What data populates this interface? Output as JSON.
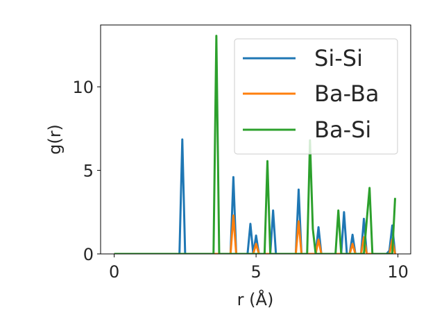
{
  "chart_data": {
    "type": "line",
    "xlabel": "r (Å)",
    "ylabel": "g(r)",
    "xlim": [
      -0.48,
      10.45
    ],
    "ylim": [
      0,
      13.7
    ],
    "xticks": [
      0,
      5,
      10
    ],
    "yticks": [
      0,
      5,
      10
    ],
    "xtick_labels": [
      "0",
      "5",
      "10"
    ],
    "ytick_labels": [
      "0",
      "5",
      "10"
    ],
    "grid": false,
    "legend_position": "top-right",
    "x": [
      0.0,
      0.1,
      0.2,
      0.3,
      0.4,
      0.5,
      0.6,
      0.7,
      0.8,
      0.9,
      1.0,
      1.1,
      1.2,
      1.3,
      1.4,
      1.5,
      1.6,
      1.7,
      1.8,
      1.9,
      2.0,
      2.1,
      2.2,
      2.3,
      2.4,
      2.5,
      2.6,
      2.7,
      2.8,
      2.9,
      3.0,
      3.1,
      3.2,
      3.3,
      3.4,
      3.5,
      3.6,
      3.7,
      3.8,
      3.9,
      4.0,
      4.1,
      4.2,
      4.3,
      4.4,
      4.5,
      4.6,
      4.7,
      4.8,
      4.9,
      5.0,
      5.1,
      5.2,
      5.3,
      5.4,
      5.5,
      5.6,
      5.7,
      5.8,
      5.9,
      6.0,
      6.1,
      6.2,
      6.3,
      6.4,
      6.5,
      6.6,
      6.7,
      6.8,
      6.9,
      7.0,
      7.1,
      7.2,
      7.3,
      7.4,
      7.5,
      7.6,
      7.7,
      7.8,
      7.9,
      8.0,
      8.1,
      8.2,
      8.3,
      8.4,
      8.5,
      8.6,
      8.7,
      8.8,
      8.9,
      9.0,
      9.1,
      9.2,
      9.3,
      9.4,
      9.5,
      9.6,
      9.7,
      9.8,
      9.9
    ],
    "series": [
      {
        "name": "Si-Si",
        "color": "#1f77b4",
        "values": [
          0,
          0,
          0,
          0,
          0,
          0,
          0,
          0,
          0,
          0,
          0,
          0,
          0,
          0,
          0,
          0,
          0,
          0,
          0,
          0,
          0,
          0,
          0,
          0,
          6.85,
          0,
          0,
          0,
          0,
          0,
          0,
          0,
          0,
          0,
          0,
          0,
          0,
          0,
          0,
          0,
          0,
          0,
          4.6,
          0,
          0,
          0,
          0,
          0,
          1.8,
          0,
          1.1,
          0,
          0,
          0,
          0,
          0,
          2.6,
          0,
          0,
          0,
          0,
          0,
          0,
          0,
          0,
          3.85,
          0,
          0,
          0,
          0,
          0,
          0,
          1.6,
          0,
          0,
          0,
          0,
          0,
          0,
          0,
          0,
          2.5,
          0,
          0,
          1.15,
          0,
          0,
          0,
          2.1,
          0,
          0,
          0,
          0,
          0,
          0,
          0,
          0,
          0.2,
          1.7,
          0
        ]
      },
      {
        "name": "Ba-Ba",
        "color": "#ff7f0e",
        "values": [
          0,
          0,
          0,
          0,
          0,
          0,
          0,
          0,
          0,
          0,
          0,
          0,
          0,
          0,
          0,
          0,
          0,
          0,
          0,
          0,
          0,
          0,
          0,
          0,
          0,
          0,
          0,
          0,
          0,
          0,
          0,
          0,
          0,
          0,
          0,
          0,
          0,
          0,
          0,
          0,
          0,
          0,
          2.3,
          0,
          0,
          0,
          0,
          0,
          0,
          0,
          0.6,
          0,
          0,
          0,
          0,
          0,
          0,
          0,
          0,
          0,
          0,
          0,
          0,
          0,
          0,
          1.95,
          0,
          0,
          0,
          0,
          0,
          0,
          0.85,
          0,
          0,
          0,
          0,
          0,
          0,
          0,
          0,
          0,
          0,
          0,
          0.6,
          0,
          0,
          0,
          1.0,
          0,
          0,
          0,
          0,
          0,
          0,
          0,
          0,
          0,
          0.85,
          0
        ]
      },
      {
        "name": "Ba-Si",
        "color": "#2ca02c",
        "values": [
          0,
          0,
          0,
          0,
          0,
          0,
          0,
          0,
          0,
          0,
          0,
          0,
          0,
          0,
          0,
          0,
          0,
          0,
          0,
          0,
          0,
          0,
          0,
          0,
          0,
          0,
          0,
          0,
          0,
          0,
          0,
          0,
          0,
          0,
          0,
          0,
          13.05,
          0,
          0,
          0,
          0,
          0,
          0,
          0,
          0,
          0,
          0,
          0,
          0,
          0,
          0,
          0,
          0,
          0,
          5.55,
          0,
          0,
          0,
          0,
          0,
          0,
          0,
          0,
          0,
          0,
          0,
          0,
          0,
          0,
          6.8,
          1.5,
          0,
          0,
          0,
          0,
          0,
          0,
          0,
          0,
          2.6,
          0,
          0,
          0,
          0,
          0,
          0,
          0,
          0,
          0,
          2.0,
          3.95,
          0,
          0,
          0,
          0,
          0,
          0,
          0,
          0,
          3.35
        ]
      }
    ]
  }
}
